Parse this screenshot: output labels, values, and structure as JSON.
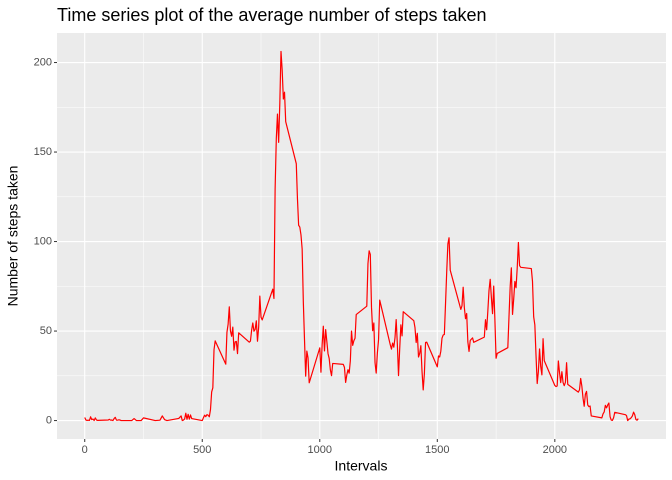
{
  "chart_data": {
    "type": "line",
    "title": "Time series plot of the average number of steps taken",
    "x_label": "Intervals",
    "y_label": "Number of steps taken",
    "x": [
      0,
      5,
      10,
      15,
      20,
      25,
      30,
      35,
      40,
      45,
      50,
      55,
      100,
      105,
      110,
      115,
      120,
      125,
      130,
      135,
      140,
      145,
      150,
      155,
      200,
      210,
      220,
      230,
      240,
      250,
      300,
      320,
      330,
      340,
      350,
      400,
      410,
      415,
      420,
      425,
      430,
      435,
      440,
      445,
      450,
      455,
      500,
      505,
      510,
      515,
      520,
      525,
      530,
      535,
      540,
      545,
      550,
      555,
      600,
      605,
      610,
      615,
      620,
      625,
      630,
      635,
      640,
      645,
      650,
      655,
      700,
      705,
      710,
      715,
      720,
      725,
      730,
      735,
      740,
      745,
      750,
      755,
      800,
      805,
      810,
      815,
      820,
      825,
      830,
      835,
      840,
      845,
      850,
      855,
      900,
      905,
      910,
      915,
      920,
      925,
      930,
      935,
      940,
      945,
      950,
      955,
      1000,
      1005,
      1010,
      1015,
      1020,
      1025,
      1030,
      1035,
      1040,
      1045,
      1050,
      1055,
      1100,
      1105,
      1110,
      1115,
      1120,
      1125,
      1130,
      1135,
      1140,
      1145,
      1150,
      1155,
      1200,
      1205,
      1210,
      1215,
      1220,
      1225,
      1230,
      1235,
      1240,
      1245,
      1250,
      1255,
      1300,
      1305,
      1310,
      1315,
      1320,
      1325,
      1330,
      1335,
      1340,
      1345,
      1350,
      1355,
      1400,
      1405,
      1410,
      1415,
      1420,
      1425,
      1430,
      1435,
      1440,
      1445,
      1450,
      1455,
      1500,
      1505,
      1510,
      1515,
      1520,
      1525,
      1530,
      1535,
      1540,
      1545,
      1550,
      1555,
      1600,
      1605,
      1610,
      1615,
      1620,
      1625,
      1630,
      1635,
      1640,
      1645,
      1650,
      1655,
      1700,
      1705,
      1710,
      1715,
      1720,
      1725,
      1730,
      1735,
      1740,
      1745,
      1750,
      1755,
      1800,
      1805,
      1810,
      1815,
      1820,
      1825,
      1830,
      1835,
      1840,
      1845,
      1850,
      1855,
      1900,
      1905,
      1910,
      1915,
      1920,
      1925,
      1930,
      1935,
      1940,
      1945,
      1950,
      1955,
      2000,
      2005,
      2010,
      2015,
      2020,
      2025,
      2030,
      2035,
      2040,
      2045,
      2050,
      2055,
      2100,
      2105,
      2110,
      2115,
      2120,
      2125,
      2130,
      2135,
      2140,
      2145,
      2150,
      2155,
      2200,
      2205,
      2210,
      2215,
      2220,
      2225,
      2230,
      2235,
      2240,
      2245,
      2250,
      2255,
      2300,
      2305,
      2310,
      2315,
      2320,
      2325,
      2330,
      2335,
      2340,
      2345,
      2350,
      2355
    ],
    "series": [
      {
        "color": "red",
        "values": [
          1.7,
          0.3,
          0.1,
          0.2,
          0.1,
          2.1,
          0.5,
          0.9,
          0,
          1.5,
          0.3,
          0.1,
          0.3,
          0.7,
          0.2,
          0.3,
          0,
          1.1,
          1.8,
          0.2,
          0.2,
          0.4,
          0.3,
          0,
          0,
          1.1,
          0,
          0,
          0,
          1.5,
          0,
          0.2,
          2.6,
          0.5,
          0,
          1.2,
          2.6,
          0,
          0.3,
          0.9,
          4.1,
          0.7,
          3.5,
          0.8,
          3.1,
          1.1,
          0,
          1.6,
          3,
          2.2,
          3.3,
          3,
          2.1,
          6.1,
          16,
          18.3,
          39.5,
          44.5,
          31.5,
          49.3,
          53.8,
          63.5,
          50,
          47.1,
          52.2,
          39.3,
          44,
          44.2,
          37.4,
          49,
          43.8,
          44.4,
          50.5,
          54.5,
          49.9,
          50.9,
          55.7,
          44.3,
          52.3,
          69.5,
          57.8,
          56.2,
          73.4,
          68.2,
          129.4,
          157.5,
          171.2,
          155.4,
          177.3,
          206.2,
          195.9,
          179.6,
          183.4,
          167,
          143.5,
          124,
          109.1,
          108.1,
          103.7,
          95.9,
          66.2,
          45.2,
          24.8,
          38.8,
          35,
          21.1,
          40.6,
          27,
          42.4,
          52.7,
          38.9,
          50.8,
          44.3,
          37.4,
          34.7,
          28.3,
          25.1,
          31.9,
          31.4,
          29.7,
          21.3,
          25.5,
          28.4,
          26.5,
          33.4,
          50,
          42,
          44.6,
          46,
          59.2,
          63.9,
          87.7,
          94.8,
          92.8,
          63.4,
          50.2,
          54.5,
          32.4,
          26.5,
          37.7,
          45.1,
          67.3,
          42.3,
          39.9,
          43.3,
          41,
          46.2,
          56.4,
          42.8,
          25.1,
          40,
          53.5,
          47.3,
          60.8,
          55.8,
          52,
          43.6,
          48.7,
          35.5,
          37.5,
          41.8,
          27.5,
          17.1,
          26.1,
          43.6,
          43.8,
          30,
          36.1,
          35.5,
          38.8,
          46,
          47.8,
          48.1,
          65.3,
          82.9,
          98.7,
          102.1,
          84,
          62.1,
          64.1,
          74.5,
          63.2,
          56.9,
          59.8,
          43.9,
          38.6,
          44.7,
          45.5,
          46.2,
          43.7,
          46.6,
          56.3,
          50.7,
          61.2,
          72.7,
          78.9,
          68.9,
          59.7,
          75.1,
          56.5,
          34.8,
          37.5,
          40.7,
          58,
          74.7,
          85.3,
          59.3,
          67.8,
          77.7,
          74.2,
          85.3,
          99.5,
          86.6,
          85.6,
          84.9,
          77.8,
          58,
          53.4,
          36.3,
          20.7,
          27.4,
          40,
          30.2,
          25.5,
          45.7,
          33.5,
          19.6,
          19,
          19.3,
          33.3,
          26.8,
          21.2,
          27.3,
          21.3,
          19.5,
          21.3,
          32.3,
          20.2,
          15.9,
          17.2,
          23.5,
          19.2,
          12.5,
          8,
          14.7,
          16.3,
          8.7,
          7.8,
          8.1,
          2.6,
          1.5,
          3.7,
          4.8,
          8.5,
          7.1,
          8.7,
          9.8,
          2.2,
          0.3,
          0.1,
          1.6,
          4.6,
          3.3,
          2.8,
          0,
          0.8,
          1,
          1.6,
          2.6,
          4.7,
          3.3,
          0.6,
          0.2,
          1.1
        ]
      }
    ],
    "xlim": [
      -118,
      2473
    ],
    "ylim": [
      -10.3,
      216.5
    ],
    "xticks": [
      0,
      500,
      1000,
      1500,
      2000
    ],
    "yticks": [
      0,
      50,
      100,
      150,
      200
    ],
    "grid": true
  }
}
